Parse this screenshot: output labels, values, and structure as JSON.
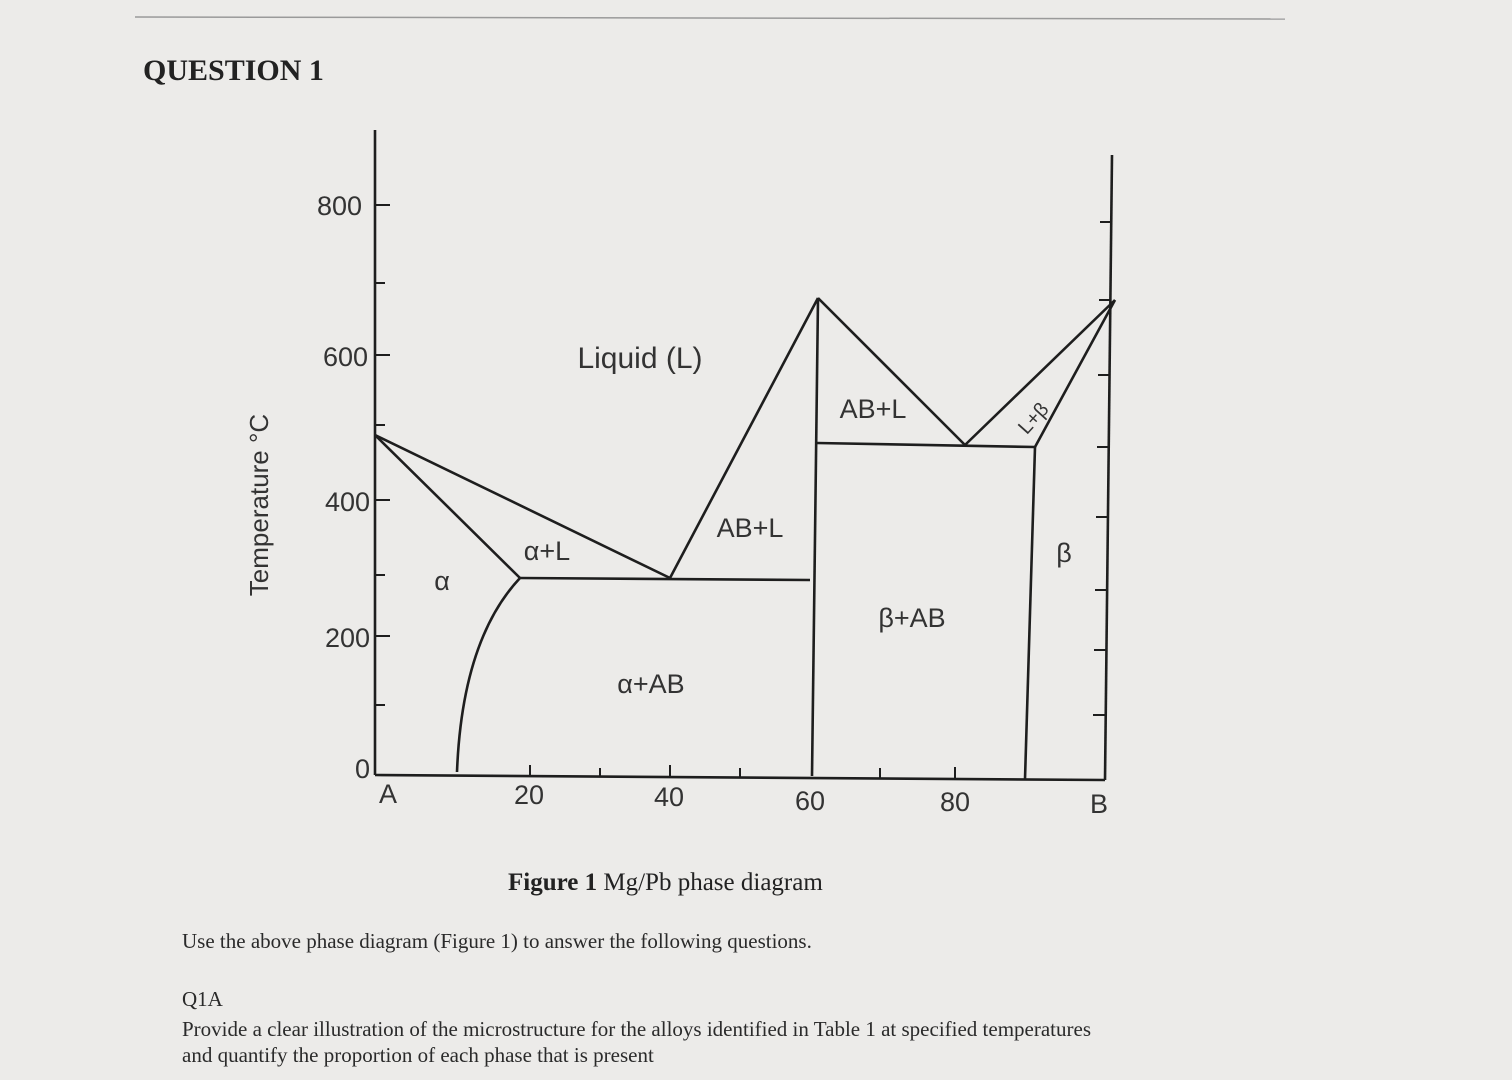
{
  "question": {
    "title": "QUESTION 1"
  },
  "figure": {
    "y_axis_label": "Temperature °C",
    "y_ticks": [
      "800",
      "600",
      "400",
      "200",
      "0"
    ],
    "x_ticks": [
      "A",
      "20",
      "40",
      "60",
      "80",
      "B"
    ],
    "regions": [
      "Liquid (L)",
      "AB+L",
      "AB+L",
      "α+L",
      "α",
      "β",
      "β+AB",
      "α+AB",
      "L+β"
    ],
    "caption": {
      "label": "Figure 1",
      "text": "Mg/Pb phase diagram"
    }
  },
  "instructions": "Use the above phase diagram (Figure 1) to answer the following questions.",
  "q1a": {
    "label": "Q1A",
    "text": "Provide a clear illustration of the microstructure for the alloys identified in Table 1 at specified temperatures and quantify the proportion of each phase that is present"
  }
}
